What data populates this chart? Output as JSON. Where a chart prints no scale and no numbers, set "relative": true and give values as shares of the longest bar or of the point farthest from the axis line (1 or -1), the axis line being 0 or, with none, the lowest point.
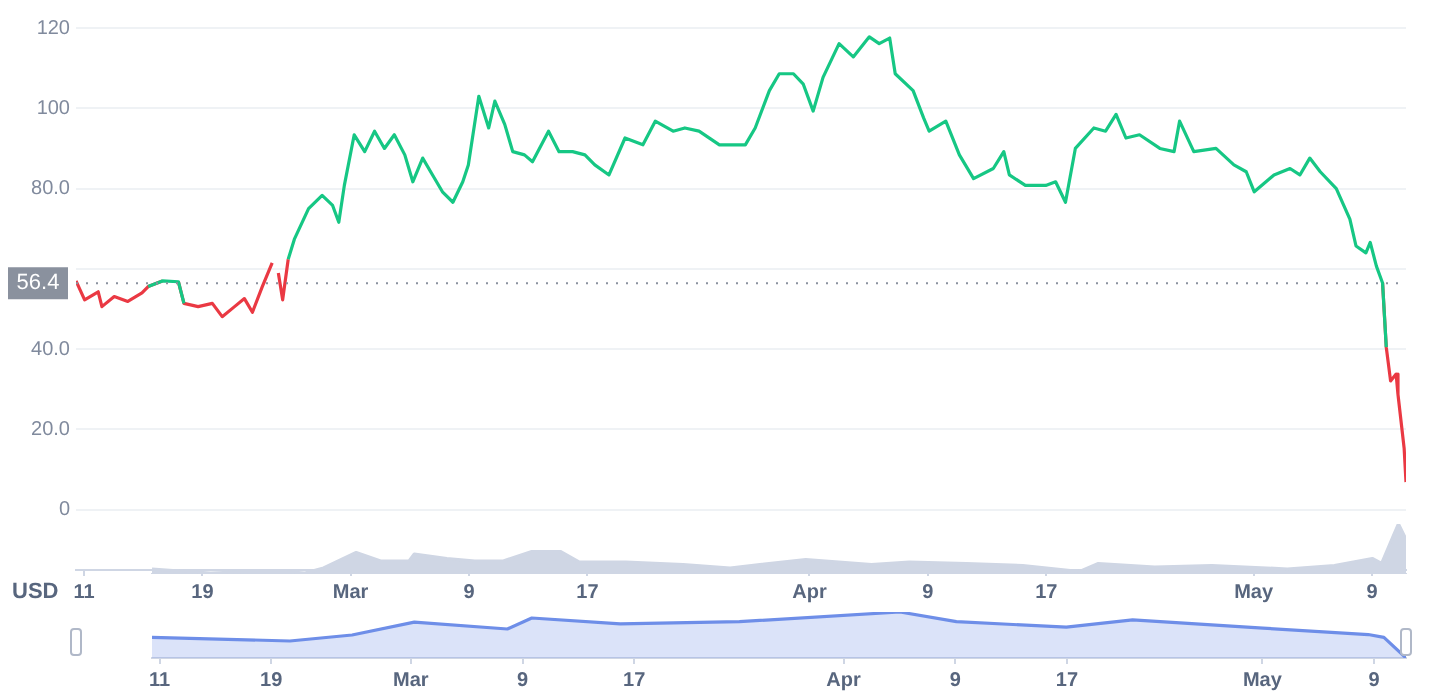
{
  "chart_data": [
    {
      "type": "line",
      "ylabel": "USD",
      "xlim": [
        "--02-10T11:00",
        "--05-11T07:00"
      ],
      "xticks": [
        {
          "value": "--02-11",
          "label": "11"
        },
        {
          "value": "--02-19",
          "label": "19"
        },
        {
          "value": "--03-01",
          "label": "Mar"
        },
        {
          "value": "--03-09",
          "label": "9"
        },
        {
          "value": "--03-17",
          "label": "17"
        },
        {
          "value": "--04-01",
          "label": "Apr"
        },
        {
          "value": "--04-09",
          "label": "9"
        },
        {
          "value": "--04-17",
          "label": "17"
        },
        {
          "value": "--05-01",
          "label": "May"
        },
        {
          "value": "--05-09",
          "label": "9"
        }
      ],
      "ylim": [
        -15,
        120
      ],
      "yticks": [
        0,
        {
          "value": 20,
          "label": "20.0"
        },
        {
          "value": 40,
          "label": "40.0"
        },
        {
          "value": 60,
          "label": null
        },
        {
          "value": 80,
          "label": "80.0"
        },
        100,
        120
      ],
      "grid": "y",
      "marker": "none",
      "ref_lines": [
        {
          "axis": "y",
          "value": 56.4,
          "label": "56.4",
          "color": "#8a919e",
          "line_style": "dotted"
        }
      ],
      "series": [
        {
          "color": "#16c784",
          "x": [
            "--02-15T08:00",
            "--02-16T07:00",
            "--02-17T09:00",
            "--02-17T18:00",
            "--02-18T17:00",
            "--02-23T01:00",
            "--02-23T17:00",
            "--02-24T03:00",
            "--02-24T10:00",
            "--02-24T19:00",
            "--02-25T05:00",
            "--02-26T04:00",
            "--02-27T02:00",
            "--02-27T19:00",
            "--02-28T05:00",
            "--02-28T14:00",
            "--03-01T06:00",
            "--03-01T23:00",
            "--03-02T15:00",
            "--03-03T07:00",
            "--03-03T23:00",
            "--03-04T16:00",
            "--03-05T05:00",
            "--03-05T21:00",
            "--03-06T13:00",
            "--03-07T05:00",
            "--03-07T22:00",
            "--03-08T14:00",
            "--03-08T23:00",
            "--03-09T16:00",
            "--03-10T08:00",
            "--03-10T18:00",
            "--03-11T10:00",
            "--03-11T23:00",
            "--03-12T18:00",
            "--03-13T07:00",
            "--03-14T09:00",
            "--03-15T02:00",
            "--03-16T00:00",
            "--03-16T20:00",
            "--03-17T12:00",
            "--03-18T11:00",
            "--03-19T13:00",
            "--03-20T18:00",
            "--03-21T14:00",
            "--03-22T19:00",
            "--03-23T14:00",
            "--03-24T13:00",
            "--03-25T22:00",
            "--03-27T16:00",
            "--03-28T08:00",
            "--03-29T07:00",
            "--03-29T23:00",
            "--03-30T22:00",
            "--03-31T14:00",
            "--04-01T06:00",
            "--04-01T22:00",
            "--04-03T00:00",
            "--04-03T23:00",
            "--04-05T01:00",
            "--04-05T17:00",
            "--04-06T10:00",
            "--04-06T19:00",
            "--04-08T00:00",
            "--04-08T17:00",
            "--04-09T02:00",
            "--04-10T05:00",
            "--04-11T03:00",
            "--04-12T02:00",
            "--04-13T10:00",
            "--04-14T03:00",
            "--04-14T12:00",
            "--04-15T14:00",
            "--04-16T23:00",
            "--04-17T15:00",
            "--04-18T07:00",
            "--04-18T23:00",
            "--04-20T05:00",
            "--04-21T00:00",
            "--04-21T17:00",
            "--04-22T09:00",
            "--04-23T07:00",
            "--04-24T16:00",
            "--04-25T15:00",
            "--04-26T00:00",
            "--04-26T23:00",
            "--04-28T11:00",
            "--04-29T16:00",
            "--04-30T12:00",
            "--05-01T01:00",
            "--05-02T09:00",
            "--05-03T11:00",
            "--05-04T03:00",
            "--05-04T19:00",
            "--05-05T12:00",
            "--05-06T14:00",
            "--05-07T12:00",
            "--05-07T22:00",
            "--05-08T14:00",
            "--05-08T21:00",
            "--05-09T07:00",
            "--05-09T17:00",
            "--05-09T23:00"
          ],
          "values": [
            55.6,
            57.0,
            56.8,
            51.4,
            null,
            null,
            null,
            null,
            null,
            62.4,
            67.4,
            75.0,
            78.3,
            75.8,
            71.6,
            80.8,
            93.4,
            89.2,
            94.3,
            90.0,
            93.4,
            88.4,
            81.7,
            87.6,
            83.4,
            79.2,
            76.6,
            81.7,
            85.9,
            103,
            95.1,
            101.8,
            96,
            89.2,
            88.4,
            86.7,
            94.3,
            89.2,
            89.2,
            88.4,
            85.9,
            83.4,
            92.6,
            90.9,
            96.8,
            94.3,
            95.1,
            94.3,
            90.9,
            90.9,
            95.1,
            104.4,
            108.6,
            108.6,
            106,
            99.3,
            107.7,
            116.1,
            112.8,
            117.8,
            116.1,
            117.5,
            108.6,
            104.4,
            97.6,
            94.3,
            96.8,
            88.4,
            82.5,
            85,
            89.2,
            83.4,
            80.8,
            80.8,
            81.7,
            76.6,
            90,
            95.1,
            94.3,
            98.5,
            92.6,
            93.4,
            90,
            89.2,
            96.8,
            89.2,
            90,
            85.9,
            84.2,
            79.2,
            83.4,
            85,
            83.4,
            87.6,
            84.2,
            80,
            72.4,
            65.7,
            64,
            66.6,
            60.7,
            56.5,
            40.5
          ]
        },
        {
          "color": "#ea3943",
          "x": [
            "--02-10T11:00",
            "--02-11T01:00",
            "--02-11T23:00",
            "--02-12T05:00",
            "--02-13T01:00",
            "--02-13T23:00",
            "--02-14T22:00",
            "--02-15T08:00",
            "--02-16T07:00",
            "--02-16T20:00",
            "--02-17T09:00",
            "--02-17T18:00",
            "--02-18T17:00",
            "--02-19T16:00",
            "--02-20T08:00",
            "--02-21T04:00",
            "--02-21T20:00",
            "--02-22T09:00",
            "--02-23T01:00",
            "--02-23T17:00",
            "--02-23T20:00",
            "--02-24T03:00",
            "--02-24T10:00",
            "--02-24T19:00",
            "--02-25T00:00",
            "--05-09T17:00",
            "--05-09T23:00",
            "--05-10T06:00",
            "--05-10T15:00",
            "--05-10T18:00",
            "--05-11T04:00",
            "--05-11T07:00"
          ],
          "values": [
            57.0,
            52.3,
            54.3,
            50.6,
            53.1,
            51.9,
            54.0,
            55.6,
            57.0,
            null,
            56.8,
            51.4,
            50.6,
            51.4,
            48.1,
            50.6,
            52.6,
            49.2,
            55.6,
            61.5,
            null,
            59.0,
            52.3,
            62.4,
            null,
            56.5,
            40.5,
            32.1,
            33.8,
            28.7,
            15.3,
            6.9
          ]
        }
      ]
    },
    {
      "type": "area",
      "relative": true,
      "xlim": [
        "--02-10T11:00",
        "--05-11T07:00"
      ],
      "tick_labels": false,
      "marker": "none",
      "x": [
        "--02-10T11:00",
        "--02-11T23:00",
        "--02-14T16:00",
        "--02-17T09:00",
        "--02-20T02:00",
        "--02-21T10:00",
        "--02-22T18:00",
        "--02-25T02:00",
        "--02-26T20:00",
        "--02-28T21:00",
        "--03-01T06:00",
        "--03-03T14:00",
        "--03-05T14:00",
        "--03-07T15:00",
        "--03-09T16:00",
        "--03-11T17:00",
        "--03-13T01:00",
        "--03-16T10:00",
        "--03-20T12:00",
        "--03-23T21:00",
        "--03-29T07:00",
        "--04-03T00:00",
        "--04-05T17:00",
        "--04-09T19:00",
        "--04-13T20:00",
        "--04-17T22:00",
        "--04-19T06:00",
        "--04-23T07:00",
        "--04-27T09:00",
        "--05-02T19:00",
        "--05-06T04:00",
        "--05-08T21:00",
        "--05-09T13:00",
        "--05-10T09:00",
        "--05-10T18:00",
        "--05-11T07:00"
      ],
      "series": [
        {
          "color": "#cfd6e4",
          "values": [
            0.1,
            0.07,
            0.02,
            0.05,
            0.05,
            0.02,
            0.12,
            0.43,
            0.26,
            0.26,
            0.4,
            0.31,
            0.26,
            0.26,
            0.45,
            0.45,
            0.24,
            0.24,
            0.19,
            0.12,
            0.29,
            0.19,
            0.24,
            0.21,
            0.17,
            0.05,
            0.21,
            0.14,
            0.17,
            0.1,
            0.17,
            0.31,
            0.21,
            0.76,
            1,
            0.69
          ]
        }
      ]
    },
    {
      "type": "area",
      "relative": true,
      "xlim": [
        "--02-10T11:00",
        "--05-11T07:00"
      ],
      "xticks": [
        {
          "value": "--02-11",
          "label": "11"
        },
        {
          "value": "--02-19",
          "label": "19"
        },
        {
          "value": "--03-01",
          "label": "Mar"
        },
        {
          "value": "--03-09",
          "label": "9"
        },
        {
          "value": "--03-17",
          "label": "17"
        },
        {
          "value": "--04-01",
          "label": "Apr"
        },
        {
          "value": "--04-09",
          "label": "9"
        },
        {
          "value": "--04-17",
          "label": "17"
        },
        {
          "value": "--05-01",
          "label": "May"
        },
        {
          "value": "--05-09",
          "label": "9"
        }
      ],
      "tick_labels": "x",
      "marker": "none",
      "x": [
        "--02-10T11:00",
        "--02-20T08:00",
        "--02-24T19:00",
        "--03-01T06:00",
        "--03-07T22:00",
        "--03-09T16:00",
        "--03-16T00:00",
        "--03-24T13:00",
        "--04-05T01:00",
        "--04-09T02:00",
        "--04-16T23:00",
        "--04-21T17:00",
        "--05-01T01:00",
        "--05-08T14:00",
        "--05-09T17:00",
        "--05-11T07:00"
      ],
      "series": [
        {
          "color": "#6e8ee8",
          "values": [
            0.45,
            0.37,
            0.5,
            0.78,
            0.63,
            0.87,
            0.74,
            0.79,
            1,
            0.79,
            0.67,
            0.83,
            0.65,
            0.51,
            0.45,
            0
          ]
        }
      ]
    }
  ]
}
